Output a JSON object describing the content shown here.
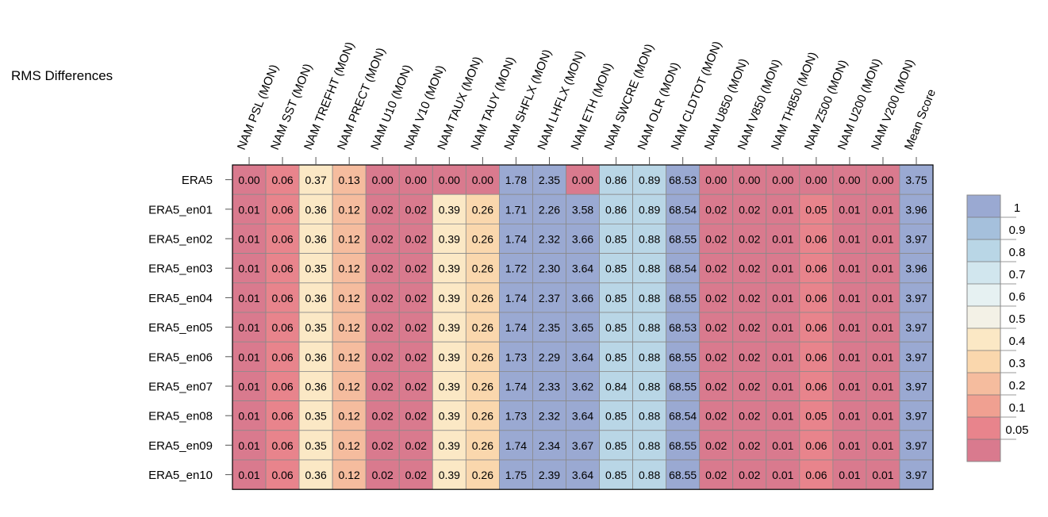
{
  "title": "RMS Differences",
  "chart_data": {
    "type": "heatmap",
    "columns": [
      "NAM PSL (MON)",
      "NAM SST (MON)",
      "NAM TREFHT (MON)",
      "NAM PRECT (MON)",
      "NAM U10 (MON)",
      "NAM V10 (MON)",
      "NAM TAUX (MON)",
      "NAM TAUY (MON)",
      "NAM SHFLX (MON)",
      "NAM LHFLX (MON)",
      "NAM ETH (MON)",
      "NAM SWCRE (MON)",
      "NAM OLR (MON)",
      "NAM CLDTOT (MON)",
      "NAM U850 (MON)",
      "NAM V850 (MON)",
      "NAM TH850 (MON)",
      "NAM Z500 (MON)",
      "NAM U200 (MON)",
      "NAM V200 (MON)",
      "Mean Score"
    ],
    "rows": [
      "ERA5",
      "ERA5_en01",
      "ERA5_en02",
      "ERA5_en03",
      "ERA5_en04",
      "ERA5_en05",
      "ERA5_en06",
      "ERA5_en07",
      "ERA5_en08",
      "ERA5_en09",
      "ERA5_en10"
    ],
    "values": [
      [
        "0.00",
        "0.06",
        "0.37",
        "0.13",
        "0.00",
        "0.00",
        "0.00",
        "0.00",
        "1.78",
        "2.35",
        "0.00",
        "0.86",
        "0.89",
        "68.53",
        "0.00",
        "0.00",
        "0.00",
        "0.00",
        "0.00",
        "0.00",
        "3.75"
      ],
      [
        "0.01",
        "0.06",
        "0.36",
        "0.12",
        "0.02",
        "0.02",
        "0.39",
        "0.26",
        "1.71",
        "2.26",
        "3.58",
        "0.86",
        "0.89",
        "68.54",
        "0.02",
        "0.02",
        "0.01",
        "0.05",
        "0.01",
        "0.01",
        "3.96"
      ],
      [
        "0.01",
        "0.06",
        "0.36",
        "0.12",
        "0.02",
        "0.02",
        "0.39",
        "0.26",
        "1.74",
        "2.32",
        "3.66",
        "0.85",
        "0.88",
        "68.55",
        "0.02",
        "0.02",
        "0.01",
        "0.06",
        "0.01",
        "0.01",
        "3.97"
      ],
      [
        "0.01",
        "0.06",
        "0.35",
        "0.12",
        "0.02",
        "0.02",
        "0.39",
        "0.26",
        "1.72",
        "2.30",
        "3.64",
        "0.85",
        "0.88",
        "68.54",
        "0.02",
        "0.02",
        "0.01",
        "0.06",
        "0.01",
        "0.01",
        "3.96"
      ],
      [
        "0.01",
        "0.06",
        "0.36",
        "0.12",
        "0.02",
        "0.02",
        "0.39",
        "0.26",
        "1.74",
        "2.37",
        "3.66",
        "0.85",
        "0.88",
        "68.55",
        "0.02",
        "0.02",
        "0.01",
        "0.06",
        "0.01",
        "0.01",
        "3.97"
      ],
      [
        "0.01",
        "0.06",
        "0.35",
        "0.12",
        "0.02",
        "0.02",
        "0.39",
        "0.26",
        "1.74",
        "2.35",
        "3.65",
        "0.85",
        "0.88",
        "68.53",
        "0.02",
        "0.02",
        "0.01",
        "0.06",
        "0.01",
        "0.01",
        "3.97"
      ],
      [
        "0.01",
        "0.06",
        "0.36",
        "0.12",
        "0.02",
        "0.02",
        "0.39",
        "0.26",
        "1.73",
        "2.29",
        "3.64",
        "0.85",
        "0.88",
        "68.55",
        "0.02",
        "0.02",
        "0.01",
        "0.06",
        "0.01",
        "0.01",
        "3.97"
      ],
      [
        "0.01",
        "0.06",
        "0.36",
        "0.12",
        "0.02",
        "0.02",
        "0.39",
        "0.26",
        "1.74",
        "2.33",
        "3.62",
        "0.84",
        "0.88",
        "68.55",
        "0.02",
        "0.02",
        "0.01",
        "0.06",
        "0.01",
        "0.01",
        "3.97"
      ],
      [
        "0.01",
        "0.06",
        "0.35",
        "0.12",
        "0.02",
        "0.02",
        "0.39",
        "0.26",
        "1.73",
        "2.32",
        "3.64",
        "0.85",
        "0.88",
        "68.54",
        "0.02",
        "0.02",
        "0.01",
        "0.05",
        "0.01",
        "0.01",
        "3.97"
      ],
      [
        "0.01",
        "0.06",
        "0.35",
        "0.12",
        "0.02",
        "0.02",
        "0.39",
        "0.26",
        "1.74",
        "2.34",
        "3.67",
        "0.85",
        "0.88",
        "68.55",
        "0.02",
        "0.02",
        "0.01",
        "0.06",
        "0.01",
        "0.01",
        "3.97"
      ],
      [
        "0.01",
        "0.06",
        "0.36",
        "0.12",
        "0.02",
        "0.02",
        "0.39",
        "0.26",
        "1.75",
        "2.39",
        "3.64",
        "0.85",
        "0.88",
        "68.55",
        "0.02",
        "0.02",
        "0.01",
        "0.06",
        "0.01",
        "0.01",
        "3.97"
      ]
    ],
    "legend": {
      "position": "right",
      "labels": [
        "1",
        "0.9",
        "0.8",
        "0.7",
        "0.6",
        "0.5",
        "0.4",
        "0.3",
        "0.2",
        "0.1",
        "0.05"
      ],
      "colors": [
        "#9aa9d2",
        "#a5c0dc",
        "#b9d6e6",
        "#d1e6ee",
        "#e6f1f2",
        "#f3f1e6",
        "#fbe8c5",
        "#fad7ad",
        "#f5bc9e",
        "#f0a091",
        "#e8848c",
        "#d97a8e"
      ]
    }
  }
}
